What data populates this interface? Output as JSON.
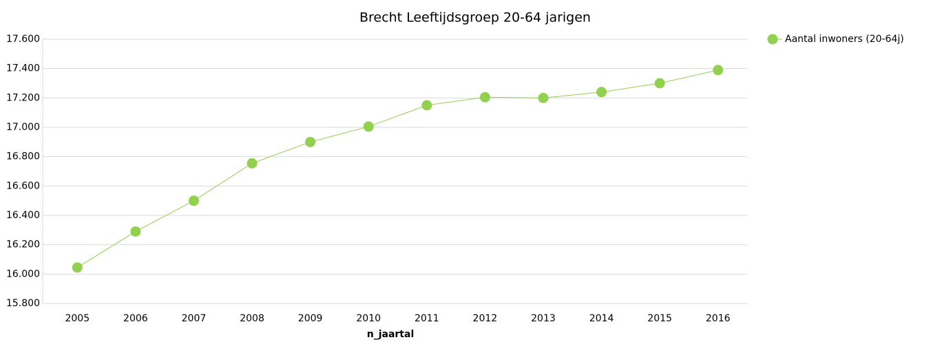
{
  "chart_data": {
    "type": "line",
    "title": "Brecht  Leeftijdsgroep 20-64 jarigen",
    "x_label": "n_jaartal",
    "categories": [
      "2005",
      "2006",
      "2007",
      "2008",
      "2009",
      "2010",
      "2011",
      "2012",
      "2013",
      "2014",
      "2015",
      "2016"
    ],
    "series": [
      {
        "name": "Aantal inwoners  (20-64j)",
        "color": "#92d050",
        "values": [
          16045,
          16290,
          16500,
          16755,
          16900,
          17005,
          17150,
          17205,
          17200,
          17240,
          17300,
          17390
        ]
      }
    ],
    "ylim": [
      15800,
      17600
    ],
    "yticks": [
      {
        "value": 15800,
        "label": "15.800"
      },
      {
        "value": 16000,
        "label": "16.000"
      },
      {
        "value": 16200,
        "label": "16.200"
      },
      {
        "value": 16400,
        "label": "16.400"
      },
      {
        "value": 16600,
        "label": "16.600"
      },
      {
        "value": 16800,
        "label": "16.800"
      },
      {
        "value": 17000,
        "label": "17.000"
      },
      {
        "value": 17200,
        "label": "17.200"
      },
      {
        "value": 17400,
        "label": "17.400"
      },
      {
        "value": 17600,
        "label": "17.600"
      }
    ],
    "grid": true,
    "legend": "right"
  }
}
